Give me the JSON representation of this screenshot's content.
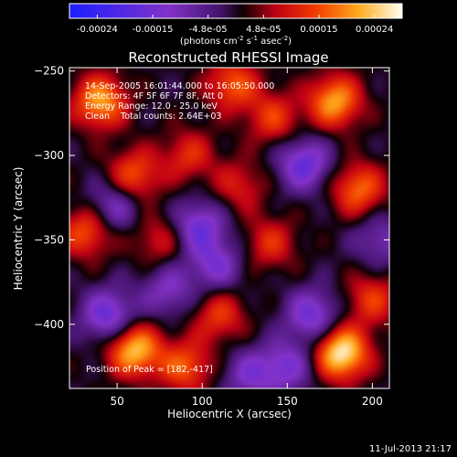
{
  "colorbar": {
    "tick_labels": [
      "-0.00024",
      "-0.00015",
      "-4.8e-05",
      "4.8e-05",
      "0.00015",
      "0.00024"
    ],
    "unit_label_parts": [
      "(photons cm",
      "-2",
      " s",
      "-1",
      " asec",
      "-2",
      ")"
    ]
  },
  "footer": {
    "timestamp": "11-Jul-2013 21:17"
  },
  "chart_data": {
    "type": "heatmap",
    "title": "Reconstructed RHESSI Image",
    "xlabel": "Heliocentric X (arcsec)",
    "ylabel": "Heliocentric Y (arcsec)",
    "xlim": [
      22,
      210
    ],
    "ylim": [
      -438,
      -248
    ],
    "x_ticks": [
      50,
      100,
      150,
      200
    ],
    "y_ticks": [
      -250,
      -300,
      -350,
      -400
    ],
    "colorbar_range": [
      -0.00024,
      0.00024
    ],
    "annotations": [
      "14-Sep-2005 16:01:44.000 to 16:05:50.000",
      "Detectors: 4F 5F 6F 7F 8F, Att 0",
      "Energy Range: 12.0 - 25.0 keV",
      "Clean    Total counts: 2.64E+03"
    ],
    "peak_label": "Position of Peak = [182,-417]",
    "peak": [
      182,
      -417
    ],
    "sources": [
      {
        "x": 182,
        "y": -417,
        "amp": 1.0
      },
      {
        "x": 60,
        "y": -415,
        "amp": 0.85
      },
      {
        "x": 178,
        "y": -268,
        "amp": 0.75
      },
      {
        "x": 40,
        "y": -268,
        "amp": 0.75
      },
      {
        "x": 118,
        "y": -258,
        "amp": 0.55
      },
      {
        "x": 192,
        "y": -320,
        "amp": 0.6
      },
      {
        "x": 60,
        "y": -312,
        "amp": 0.55
      },
      {
        "x": 32,
        "y": -345,
        "amp": 0.55
      },
      {
        "x": 142,
        "y": -278,
        "amp": 0.45
      },
      {
        "x": 110,
        "y": -395,
        "amp": 0.45
      },
      {
        "x": 92,
        "y": -300,
        "amp": 0.4
      },
      {
        "x": 140,
        "y": -352,
        "amp": 0.4
      },
      {
        "x": 90,
        "y": -425,
        "amp": 0.55
      },
      {
        "x": 122,
        "y": -318,
        "amp": 0.35
      },
      {
        "x": 75,
        "y": -350,
        "amp": 0.35
      },
      {
        "x": 200,
        "y": -385,
        "amp": 0.45
      },
      {
        "x": 160,
        "y": -305,
        "amp": -0.6
      },
      {
        "x": 45,
        "y": -395,
        "amp": -0.6
      },
      {
        "x": 98,
        "y": -342,
        "amp": -0.55
      },
      {
        "x": 165,
        "y": -395,
        "amp": -0.55
      },
      {
        "x": 108,
        "y": -365,
        "amp": -0.45
      },
      {
        "x": 48,
        "y": -330,
        "amp": -0.45
      },
      {
        "x": 150,
        "y": -425,
        "amp": -0.45
      },
      {
        "x": 205,
        "y": -350,
        "amp": -0.35
      },
      {
        "x": 128,
        "y": -430,
        "amp": -0.4
      },
      {
        "x": 80,
        "y": -380,
        "amp": -0.4
      }
    ]
  }
}
